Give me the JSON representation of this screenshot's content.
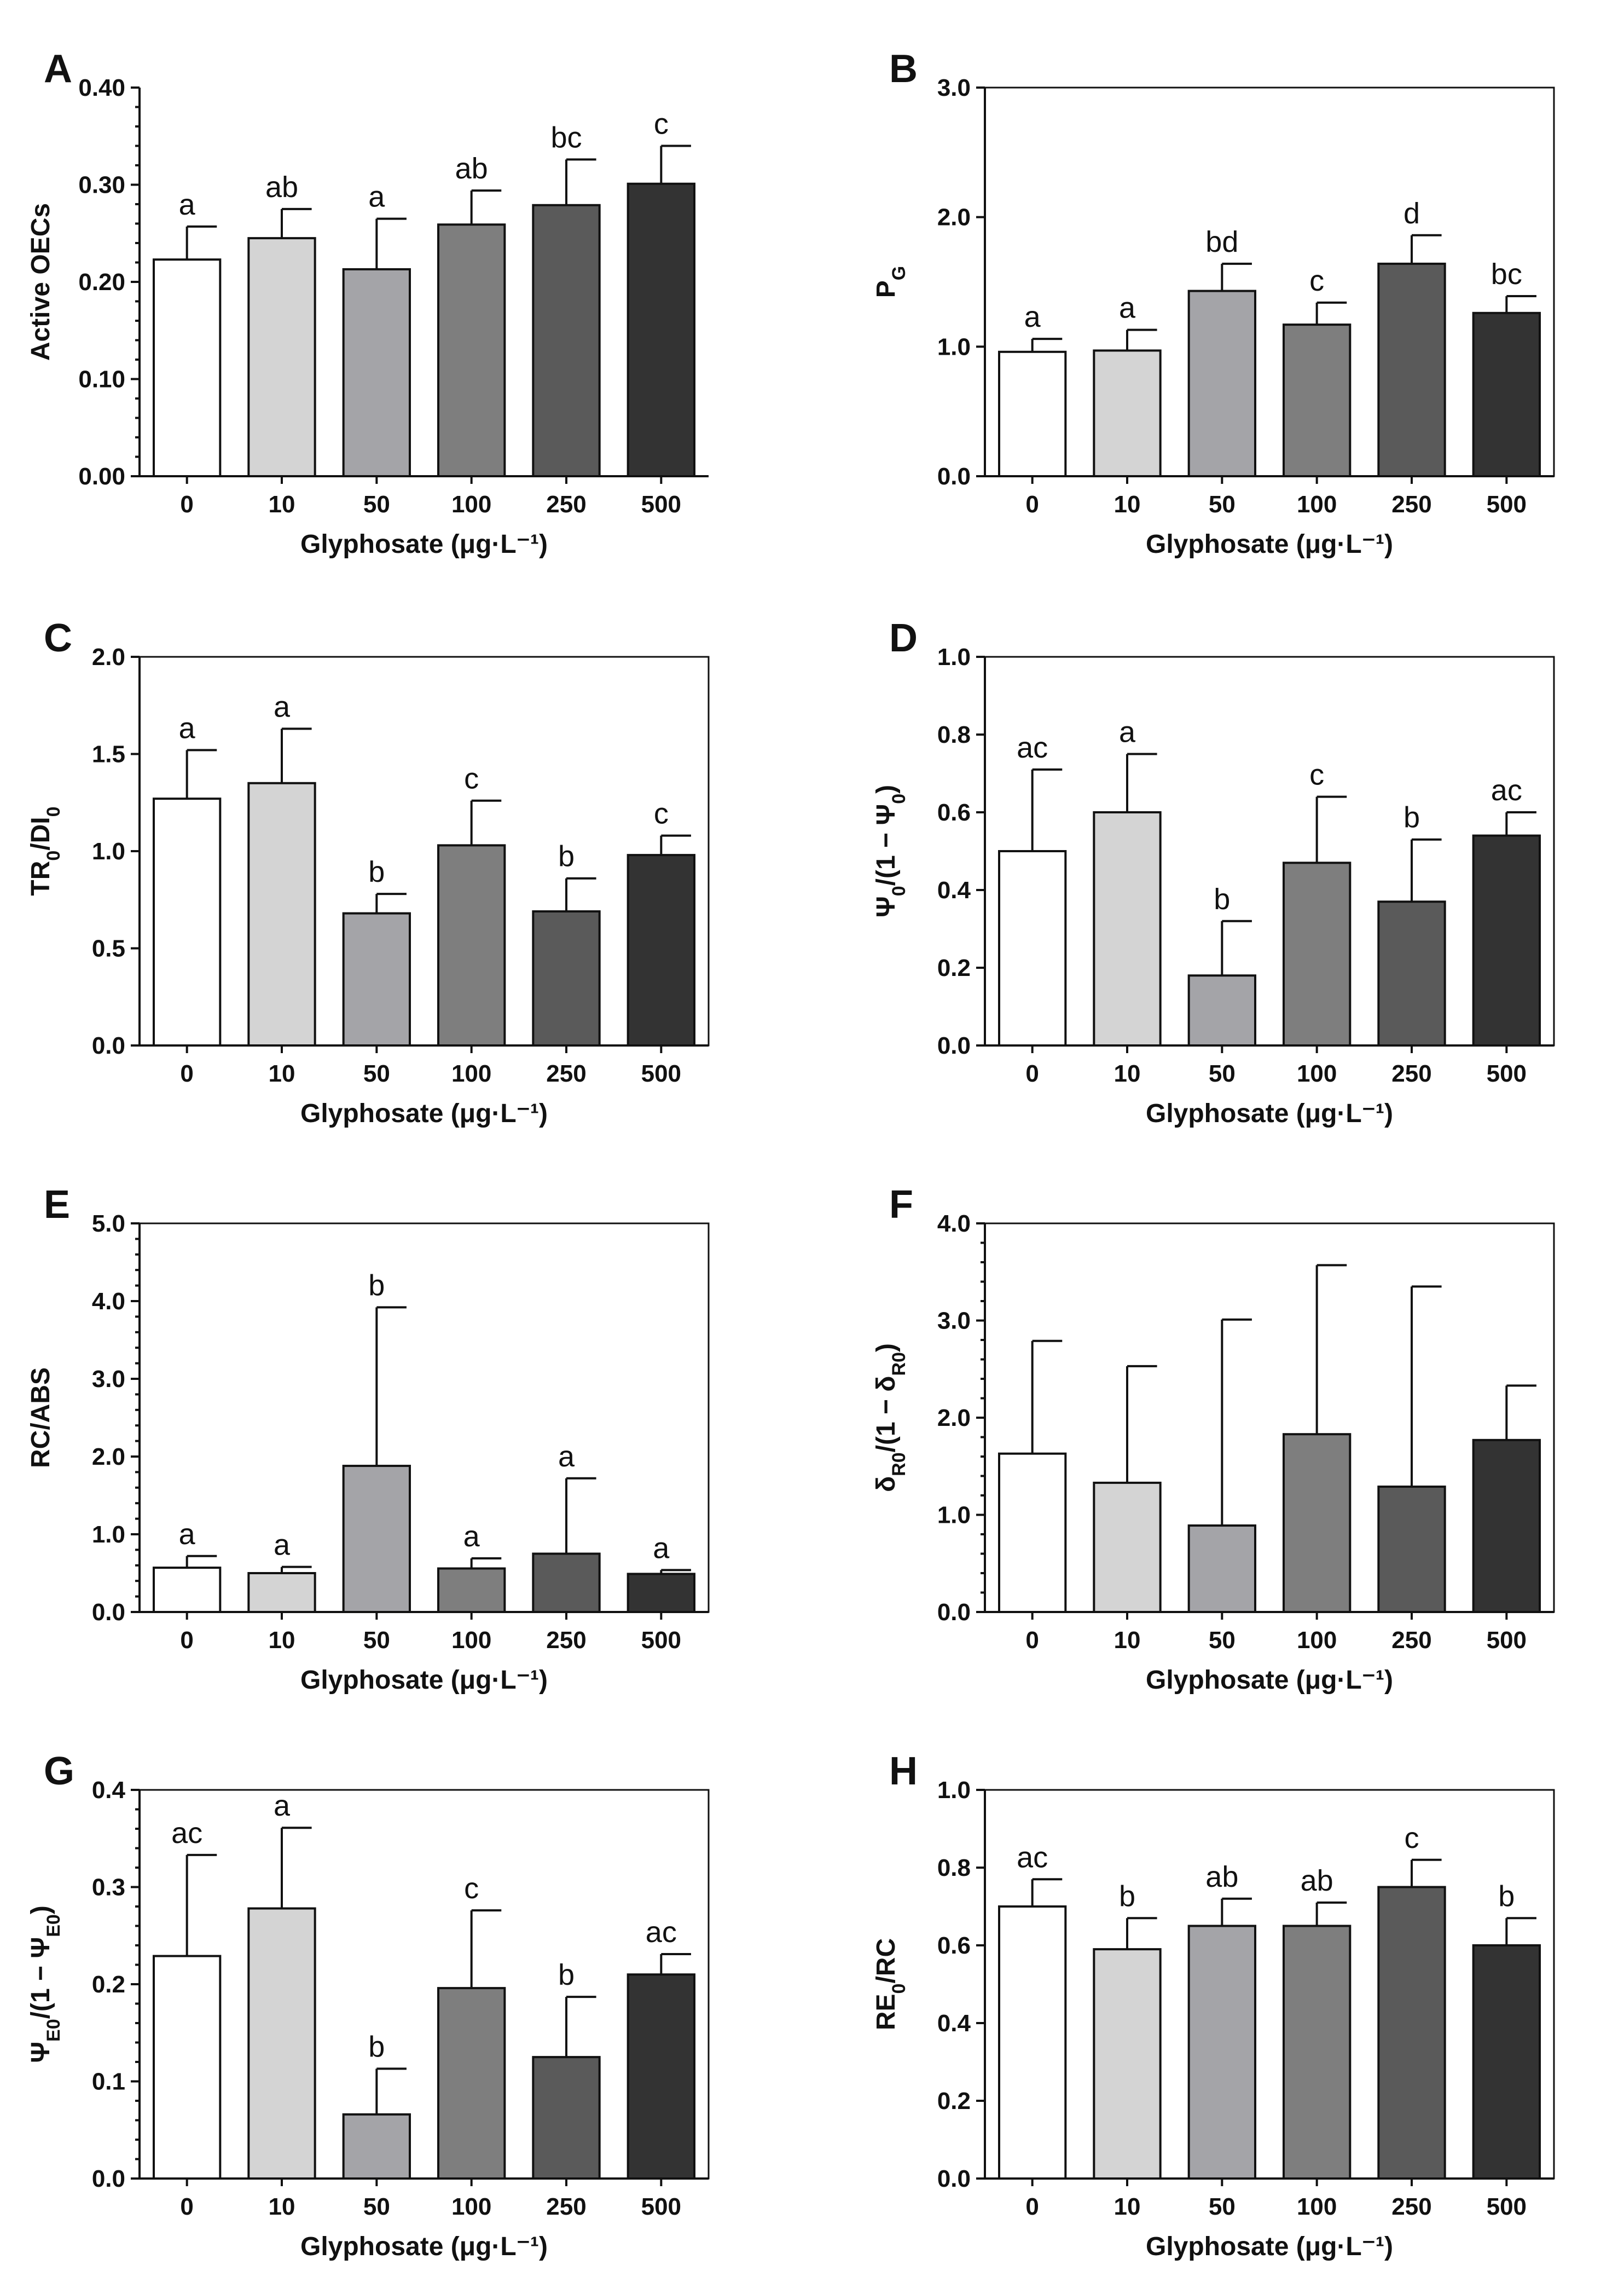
{
  "figure": {
    "xlabel": "Glyphosate (μg·L⁻¹)"
  },
  "chart_data": [
    {
      "type": "bar",
      "panel": "A",
      "ylabel": "Active OECs",
      "categories": [
        "0",
        "10",
        "50",
        "100",
        "250",
        "500"
      ],
      "values": [
        0.223,
        0.245,
        0.213,
        0.259,
        0.279,
        0.301
      ],
      "errors": [
        0.034,
        0.03,
        0.052,
        0.035,
        0.047,
        0.039
      ],
      "labels": [
        "a",
        "ab",
        "a",
        "ab",
        "bc",
        "c"
      ],
      "ylim": [
        0,
        0.4
      ],
      "yticks": [
        "0.00",
        "0.10",
        "0.20",
        "0.30",
        "0.40"
      ],
      "minor_ticks": true,
      "frame": false
    },
    {
      "type": "bar",
      "panel": "B",
      "ylabel": "P_G",
      "categories": [
        "0",
        "10",
        "50",
        "100",
        "250",
        "500"
      ],
      "values": [
        0.96,
        0.97,
        1.43,
        1.17,
        1.64,
        1.26
      ],
      "errors": [
        0.1,
        0.16,
        0.21,
        0.17,
        0.22,
        0.13
      ],
      "labels": [
        "a",
        "a",
        "bd",
        "c",
        "d",
        "bc"
      ],
      "ylim": [
        0,
        3.0
      ],
      "yticks": [
        "0.0",
        "1.0",
        "2.0",
        "3.0"
      ],
      "minor_ticks": false,
      "frame": true
    },
    {
      "type": "bar",
      "panel": "C",
      "ylabel": "TR_0/DI_0",
      "categories": [
        "0",
        "10",
        "50",
        "100",
        "250",
        "500"
      ],
      "values": [
        1.27,
        1.35,
        0.68,
        1.03,
        0.69,
        0.98
      ],
      "errors": [
        0.25,
        0.28,
        0.1,
        0.23,
        0.17,
        0.1
      ],
      "labels": [
        "a",
        "a",
        "b",
        "c",
        "b",
        "c"
      ],
      "ylim": [
        0,
        2.0
      ],
      "yticks": [
        "0.0",
        "0.5",
        "1.0",
        "1.5",
        "2.0"
      ],
      "minor_ticks": false,
      "frame": true
    },
    {
      "type": "bar",
      "panel": "D",
      "ylabel": "Ψ_0/(1 − Ψ_0)",
      "categories": [
        "0",
        "10",
        "50",
        "100",
        "250",
        "500"
      ],
      "values": [
        0.5,
        0.6,
        0.18,
        0.47,
        0.37,
        0.54
      ],
      "errors": [
        0.21,
        0.15,
        0.14,
        0.17,
        0.16,
        0.06
      ],
      "labels": [
        "ac",
        "a",
        "b",
        "c",
        "b",
        "ac"
      ],
      "ylim": [
        0,
        1.0
      ],
      "yticks": [
        "0.0",
        "0.2",
        "0.4",
        "0.6",
        "0.8",
        "1.0"
      ],
      "minor_ticks": false,
      "frame": true
    },
    {
      "type": "bar",
      "panel": "E",
      "ylabel": "RC/ABS",
      "categories": [
        "0",
        "10",
        "50",
        "100",
        "250",
        "500"
      ],
      "values": [
        0.57,
        0.5,
        1.88,
        0.56,
        0.75,
        0.49
      ],
      "errors": [
        0.15,
        0.08,
        2.04,
        0.13,
        0.97,
        0.05
      ],
      "labels": [
        "a",
        "a",
        "b",
        "a",
        "a",
        "a"
      ],
      "ylim": [
        0,
        5.0
      ],
      "yticks": [
        "0.0",
        "1.0",
        "2.0",
        "3.0",
        "4.0",
        "5.0"
      ],
      "minor_ticks": true,
      "frame": true
    },
    {
      "type": "bar",
      "panel": "F",
      "ylabel": "δ_R0/(1 − δ_R0)",
      "categories": [
        "0",
        "10",
        "50",
        "100",
        "250",
        "500"
      ],
      "values": [
        1.63,
        1.33,
        0.89,
        1.83,
        1.29,
        1.77
      ],
      "errors": [
        1.16,
        1.2,
        2.12,
        1.74,
        2.06,
        0.56
      ],
      "labels": [],
      "ylim": [
        0,
        4.0
      ],
      "yticks": [
        "0.0",
        "1.0",
        "2.0",
        "3.0",
        "4.0"
      ],
      "minor_ticks": true,
      "frame": true
    },
    {
      "type": "bar",
      "panel": "G",
      "ylabel": "Ψ_E0/(1 − Ψ_E0)",
      "categories": [
        "0",
        "10",
        "50",
        "100",
        "250",
        "500"
      ],
      "values": [
        0.229,
        0.278,
        0.066,
        0.196,
        0.125,
        0.21
      ],
      "errors": [
        0.104,
        0.083,
        0.047,
        0.08,
        0.062,
        0.021
      ],
      "labels": [
        "ac",
        "a",
        "b",
        "c",
        "b",
        "ac"
      ],
      "ylim": [
        0,
        0.4
      ],
      "yticks": [
        "0.0",
        "0.1",
        "0.2",
        "0.3",
        "0.4"
      ],
      "minor_ticks": true,
      "frame": true
    },
    {
      "type": "bar",
      "panel": "H",
      "ylabel": "RE_0/RC",
      "categories": [
        "0",
        "10",
        "50",
        "100",
        "250",
        "500"
      ],
      "values": [
        0.7,
        0.59,
        0.65,
        0.65,
        0.75,
        0.6
      ],
      "errors": [
        0.07,
        0.08,
        0.07,
        0.06,
        0.07,
        0.07
      ],
      "labels": [
        "ac",
        "b",
        "ab",
        "ab",
        "c",
        "b"
      ],
      "ylim": [
        0,
        1.0
      ],
      "yticks": [
        "0.0",
        "0.2",
        "0.4",
        "0.6",
        "0.8",
        "1.0"
      ],
      "minor_ticks": false,
      "frame": true
    }
  ]
}
